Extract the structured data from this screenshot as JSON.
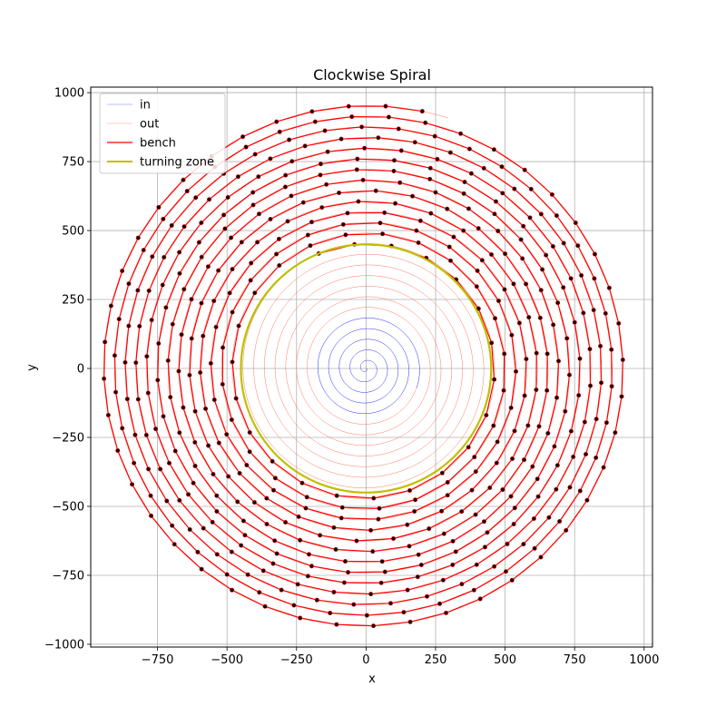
{
  "chart_data": {
    "type": "line",
    "title": "Clockwise Spiral",
    "xlabel": "x",
    "ylabel": "y",
    "xlim": [
      -990,
      1030
    ],
    "ylim": [
      -1010,
      1020
    ],
    "grid": true,
    "legend_position": "upper left",
    "x_ticks": [
      -750,
      -500,
      -250,
      0,
      250,
      500,
      750,
      1000
    ],
    "y_ticks": [
      -1000,
      -750,
      -500,
      -250,
      0,
      250,
      500,
      750,
      1000
    ],
    "x_tick_labels": [
      "−750",
      "−500",
      "−250",
      "0",
      "250",
      "500",
      "750",
      "1000"
    ],
    "y_tick_labels": [
      "−1000",
      "−750",
      "−500",
      "−250",
      "0",
      "250",
      "500",
      "750",
      "1000"
    ],
    "spiral": {
      "clockwise": true,
      "spacing_per_turn": 38.5,
      "inner_max_radius": 195,
      "outer_max_radius": 955,
      "bench_min_radius": 450,
      "bench_point_step": 133
    },
    "turning_zone_radius": 450,
    "series": [
      {
        "name": "in",
        "color": "#0000ff",
        "role": "inner spiral"
      },
      {
        "name": "out",
        "color": "#ff6347",
        "role": "outer spiral"
      },
      {
        "name": "bench",
        "color": "#ff0000",
        "role": "polyline along outer spiral",
        "marker_color": "#000000"
      },
      {
        "name": "turning zone",
        "color": "#bfbf00",
        "role": "circle"
      }
    ]
  }
}
